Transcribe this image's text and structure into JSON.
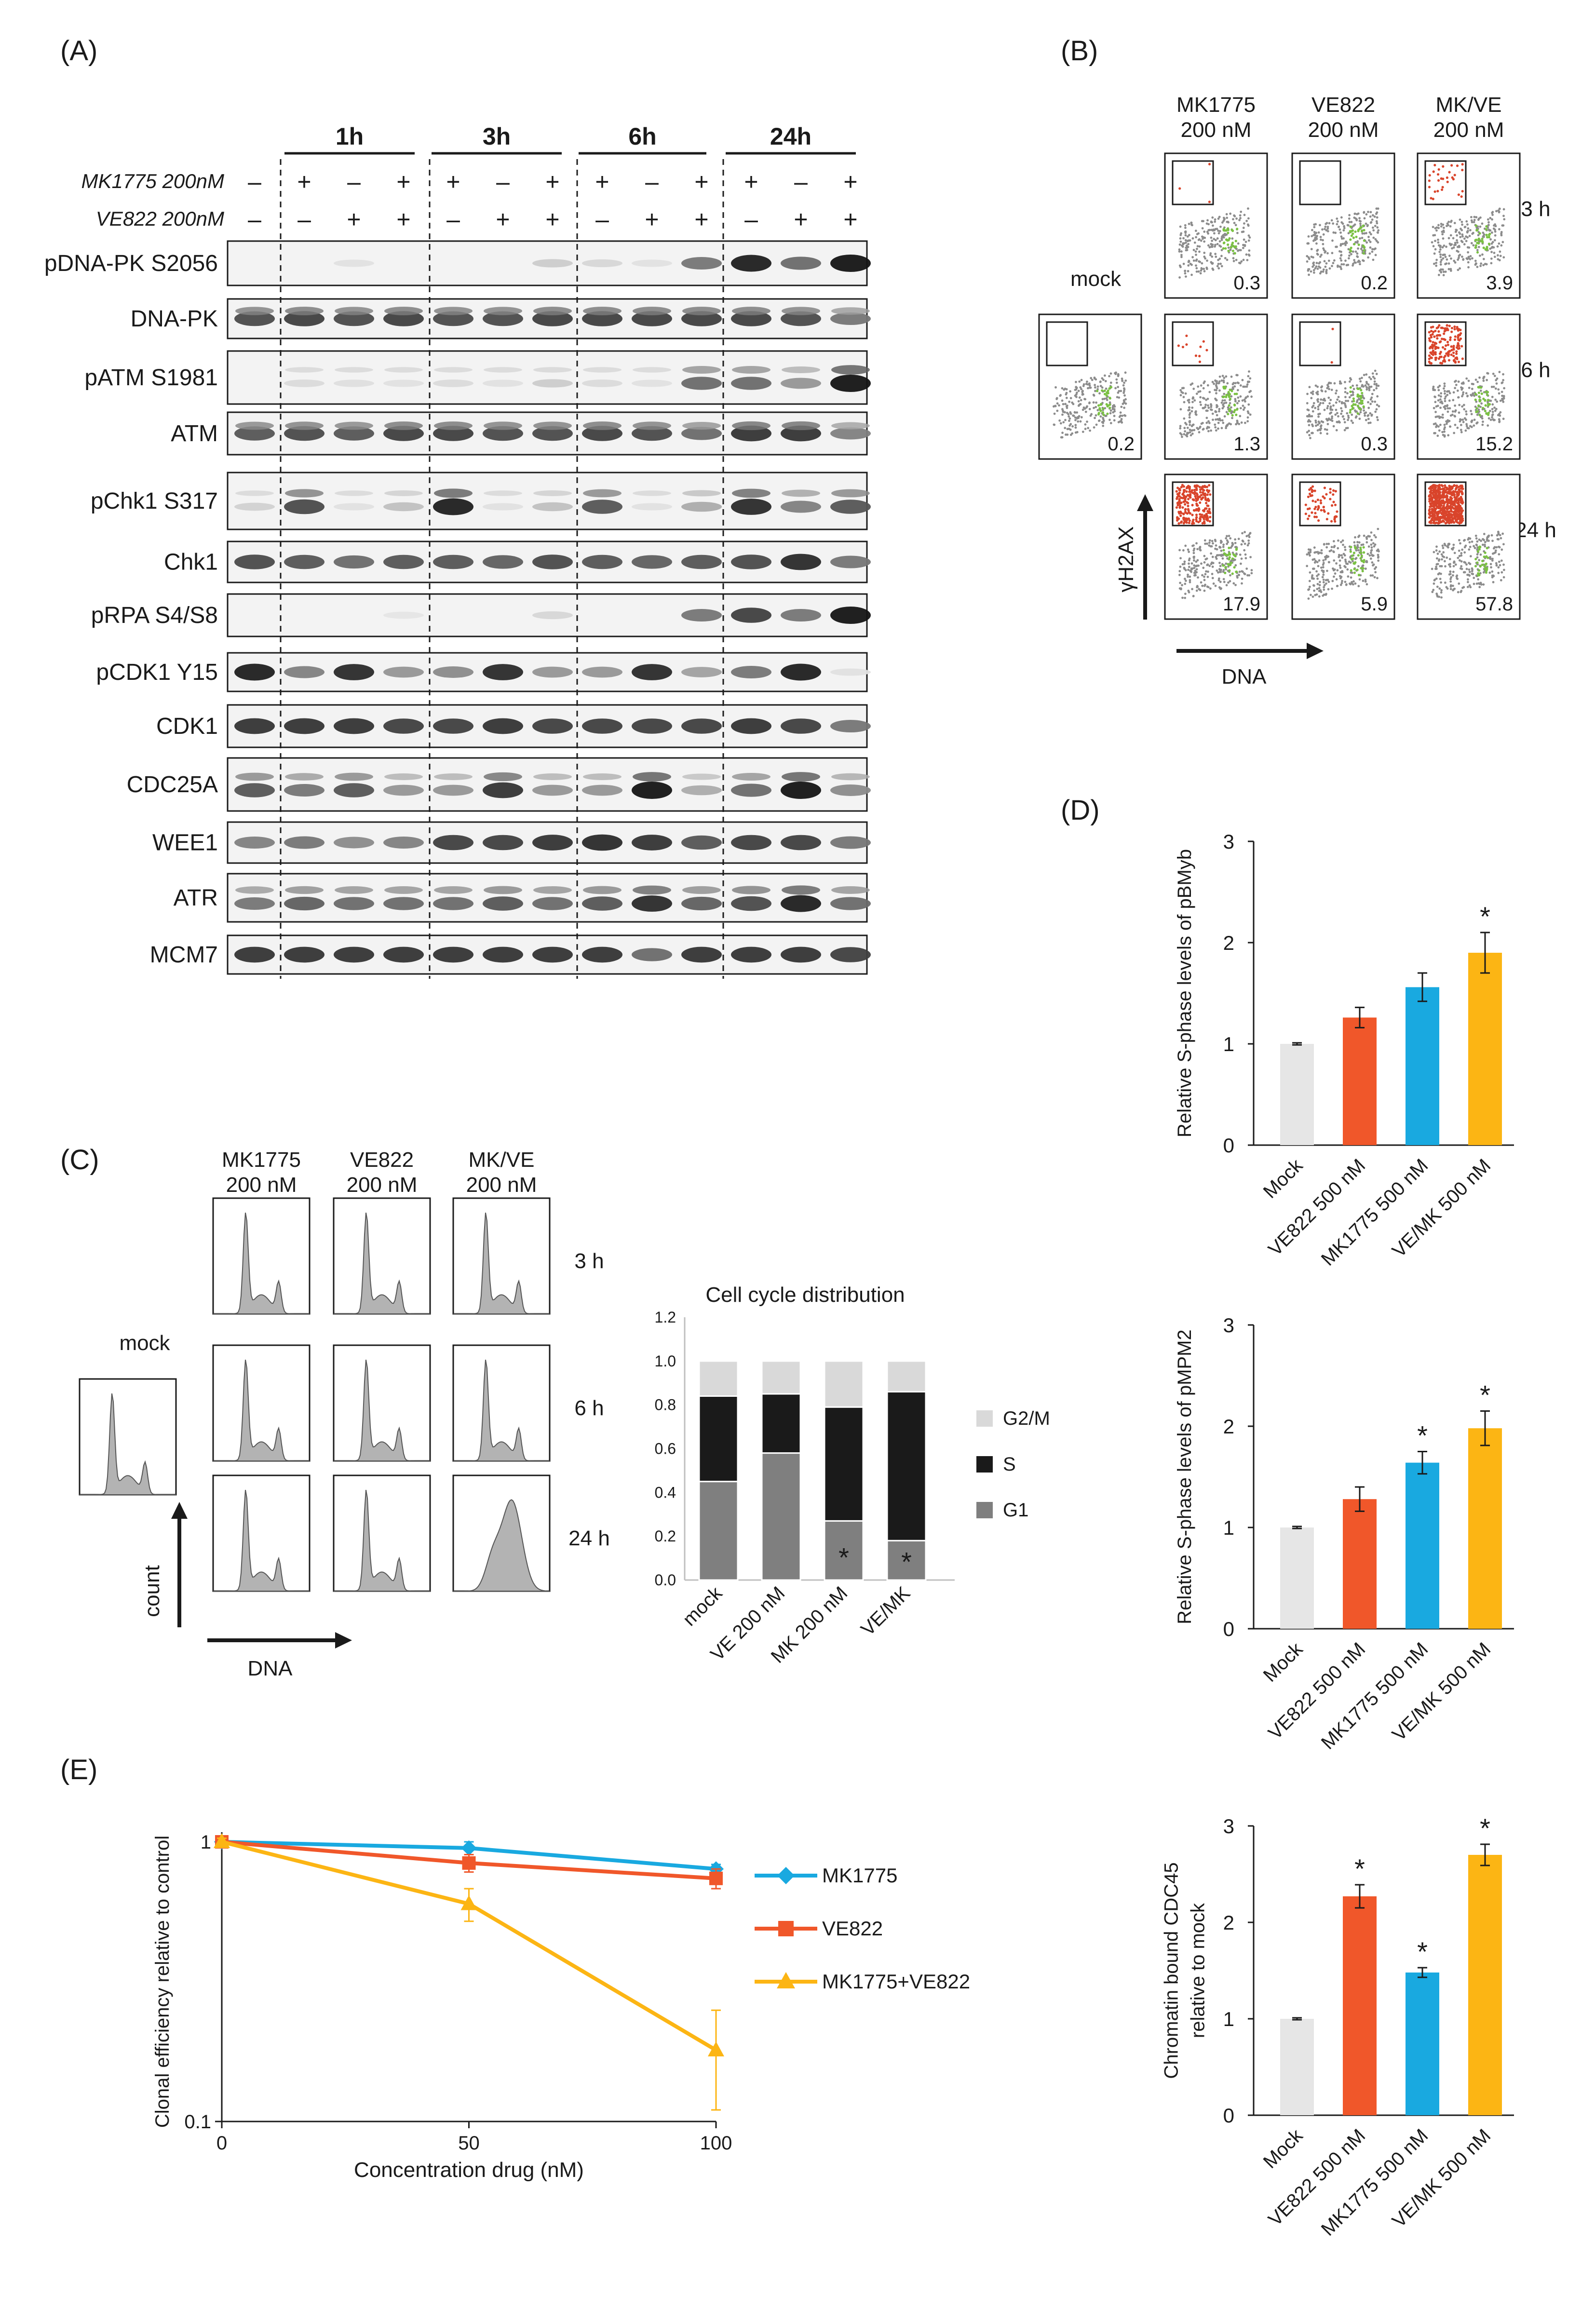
{
  "panels": {
    "A": "(A)",
    "B": "(B)",
    "C": "(C)",
    "D": "(D)",
    "E": "(E)"
  },
  "blot": {
    "timepoints": [
      "1h",
      "3h",
      "6h",
      "24h"
    ],
    "treatments": [
      {
        "label": "MK1775 200nM",
        "signs": [
          "–",
          "+",
          "–",
          "+",
          "+",
          "–",
          "+",
          "+",
          "–",
          "+",
          "+",
          "–",
          "+"
        ]
      },
      {
        "label": "VE822 200nM",
        "signs": [
          "–",
          "–",
          "+",
          "+",
          "–",
          "+",
          "+",
          "–",
          "+",
          "+",
          "–",
          "+",
          "+"
        ]
      }
    ],
    "rows": [
      "pDNA-PK S2056",
      "DNA-PK",
      "pATM S1981",
      "ATM",
      "pChk1 S317",
      "Chk1",
      "pRPA S4/S8",
      "pCDK1 Y15",
      "CDK1",
      "CDC25A",
      "WEE1",
      "ATR",
      "MCM7"
    ]
  },
  "flow": {
    "columns": [
      "MK1775\n200 nM",
      "VE822\n200 nM",
      "MK/VE\n200 nM"
    ],
    "times": [
      "3 h",
      "6 h",
      "24 h"
    ],
    "values": [
      [
        "0.3",
        "0.2",
        "3.9"
      ],
      [
        "1.3",
        "0.3",
        "15.2"
      ],
      [
        "17.9",
        "5.9",
        "57.8"
      ]
    ],
    "mock_label": "mock",
    "mock_value": "0.2",
    "yaxis": "γH2AX",
    "xaxis": "DNA"
  },
  "cellcycle": {
    "columns": [
      "MK1775\n200 nM",
      "VE822\n200 nM",
      "MK/VE\n200 nM"
    ],
    "times": [
      "3 h",
      "6 h",
      "24 h"
    ],
    "mock_label": "mock",
    "yaxis": "count",
    "xaxis": "DNA"
  },
  "chart_data": [
    {
      "id": "cell-cycle-distribution",
      "type": "bar",
      "stacked": true,
      "title": "Cell cycle distribution",
      "categories": [
        "mock",
        "VE 200 nM",
        "MK 200 nM",
        "VE/MK"
      ],
      "series": [
        {
          "name": "G1",
          "color": "#7f7f7f",
          "values": [
            0.45,
            0.58,
            0.27,
            0.18
          ]
        },
        {
          "name": "S",
          "color": "#1a1a1a",
          "values": [
            0.39,
            0.27,
            0.52,
            0.68
          ]
        },
        {
          "name": "G2/M",
          "color": "#d9d9d9",
          "values": [
            0.16,
            0.15,
            0.21,
            0.14
          ]
        }
      ],
      "annotations": [
        "*",
        "*",
        "*",
        "*"
      ],
      "ylim": [
        0,
        1.2
      ],
      "yticks": [
        "0.0",
        "0.2",
        "0.4",
        "0.6",
        "0.8",
        "1.0",
        "1.2"
      ]
    },
    {
      "id": "pBMyb",
      "type": "bar",
      "categories": [
        "Mock",
        "VE822 500 nM",
        "MK1775 500 nM",
        "VE/MK 500 nM"
      ],
      "values": [
        1.0,
        1.26,
        1.56,
        1.9
      ],
      "errors": [
        0.01,
        0.1,
        0.14,
        0.2
      ],
      "colors": [
        "#e6e6e6",
        "#f0572a",
        "#19a9e0",
        "#fcb514"
      ],
      "significant": [
        false,
        false,
        false,
        true
      ],
      "ylabel": "Relative S-phase levels of pBMyb",
      "ylim": [
        0,
        3
      ],
      "yticks": [
        "0",
        "1",
        "2",
        "3"
      ]
    },
    {
      "id": "pMPM2",
      "type": "bar",
      "categories": [
        "Mock",
        "VE822 500 nM",
        "MK1775 500 nM",
        "VE/MK 500 nM"
      ],
      "values": [
        1.0,
        1.28,
        1.64,
        1.98
      ],
      "errors": [
        0.01,
        0.12,
        0.11,
        0.17
      ],
      "colors": [
        "#e6e6e6",
        "#f0572a",
        "#19a9e0",
        "#fcb514"
      ],
      "significant": [
        false,
        false,
        true,
        true
      ],
      "ylabel": "Relative S-phase levels of pMPM2",
      "ylim": [
        0,
        3
      ],
      "yticks": [
        "0",
        "1",
        "2",
        "3"
      ]
    },
    {
      "id": "CDC45",
      "type": "bar",
      "categories": [
        "Mock",
        "VE822 500 nM",
        "MK1775 500 nM",
        "VE/MK 500 nM"
      ],
      "values": [
        1.0,
        2.27,
        1.48,
        2.7
      ],
      "errors": [
        0.01,
        0.12,
        0.05,
        0.11
      ],
      "colors": [
        "#e6e6e6",
        "#f0572a",
        "#19a9e0",
        "#fcb514"
      ],
      "significant": [
        false,
        true,
        true,
        true
      ],
      "ylabel": "Chromatin bound CDC45\nrelative to mock",
      "ylim": [
        0,
        3
      ],
      "yticks": [
        "0",
        "1",
        "2",
        "3"
      ]
    },
    {
      "id": "clonal-efficiency",
      "type": "line",
      "x": [
        0,
        50,
        100
      ],
      "xticks": [
        "0",
        "50",
        "100"
      ],
      "yscale": "log",
      "ylim": [
        0.1,
        1
      ],
      "yticks": [
        "0.1",
        "1"
      ],
      "xlabel": "Concentration drug (nM)",
      "ylabel": "Clonal efficiency relative to control",
      "series": [
        {
          "name": "MK1775",
          "color": "#19a9e0",
          "marker": "diamond",
          "values": [
            1.0,
            0.95,
            0.8
          ],
          "errors": [
            0.03,
            0.05,
            0.03
          ]
        },
        {
          "name": "VE822",
          "color": "#f0572a",
          "marker": "square",
          "values": [
            1.0,
            0.84,
            0.74
          ],
          "errors": [
            0.03,
            0.06,
            0.06
          ]
        },
        {
          "name": "MK1775+VE822",
          "color": "#fcb514",
          "marker": "triangle",
          "values": [
            1.0,
            0.6,
            0.18
          ],
          "errors": [
            0.03,
            0.08,
            0.07
          ]
        }
      ]
    }
  ]
}
